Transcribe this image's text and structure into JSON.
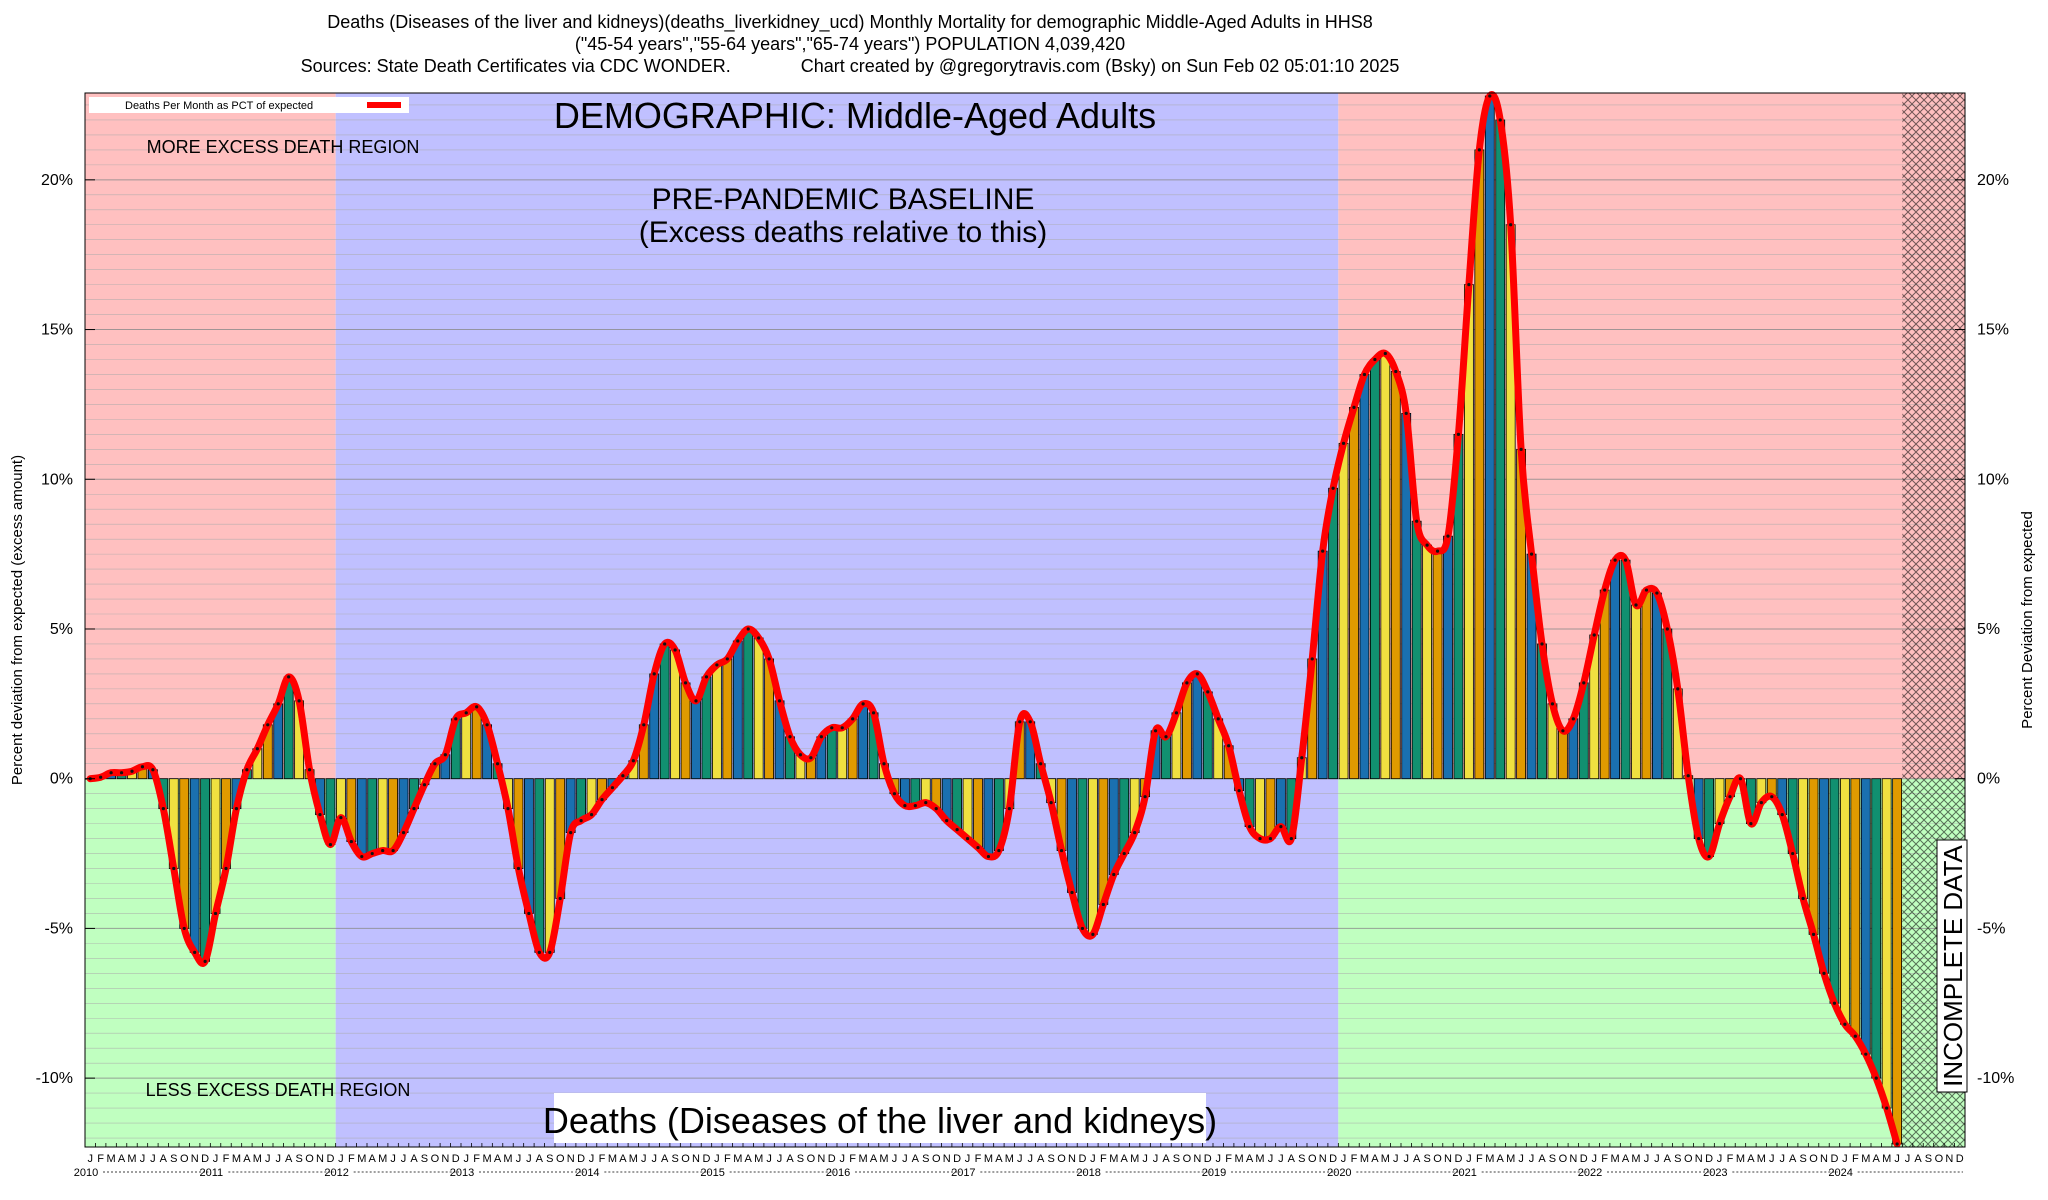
{
  "header": {
    "line1": "Deaths (Diseases of the liver and kidneys)(deaths_liverkidney_ucd) Monthly Mortality for demographic Middle-Aged Adults in HHS8",
    "line2": "(\"45-54 years\",\"55-64 years\",\"65-74 years\") POPULATION 4,039,420",
    "line3": "Sources: State Death Certificates via CDC WONDER.              Chart created by @gregorytravis.com (Bsky) on Sun Feb 02 05:01:10 2025"
  },
  "chart_data": {
    "type": "bar",
    "title": "DEMOGRAPHIC: Middle-Aged Adults",
    "subtitle": "Deaths (Diseases of the liver and kidneys)",
    "ylabel": "Percent deviation from expected (excess amount)",
    "ylabel_right": "Percent Deviation from expected",
    "ylim": [
      -12.3,
      22.9
    ],
    "yticks": [
      -10,
      -5,
      0,
      5,
      10,
      15,
      20
    ],
    "ytick_labels": [
      "-10%",
      "-5%",
      "0%",
      "5%",
      "10%",
      "15%",
      "20%"
    ],
    "grid": true,
    "legend": {
      "label": "Deaths Per Month as PCT of expected",
      "position": "top-left"
    },
    "annotations": {
      "more_excess": "MORE EXCESS DEATH REGION",
      "less_excess": "LESS EXCESS DEATH REGION",
      "baseline_line1": "PRE-PANDEMIC BASELINE",
      "baseline_line2": "(Excess deaths relative to this)",
      "incomplete": "INCOMPLETE DATA"
    },
    "baseline_period": [
      "2012-01",
      "2019-12"
    ],
    "incomplete_period": [
      "2024-07",
      "2024-12"
    ],
    "month_letters": [
      "J",
      "F",
      "M",
      "A",
      "M",
      "J",
      "J",
      "A",
      "S",
      "O",
      "N",
      "D"
    ],
    "years": [
      "2010",
      "2011",
      "2012",
      "2013",
      "2014",
      "2015",
      "2016",
      "2017",
      "2018",
      "2019",
      "2020",
      "2021",
      "2022",
      "2023",
      "2024"
    ],
    "x_start": "2010-01",
    "colors": {
      "more_region": "#ffc0c0",
      "less_region": "#c0ffc0",
      "baseline_region": "#c0c0ff",
      "line": "#ff0000",
      "bars": [
        "#f0e040",
        "#e09a00",
        "#1a70b0",
        "#119070"
      ]
    },
    "values": [
      0.0,
      0.05,
      0.2,
      0.2,
      0.25,
      0.4,
      0.3,
      -1.0,
      -3.0,
      -5.0,
      -5.8,
      -6.1,
      -4.5,
      -3.0,
      -1.0,
      0.3,
      1.0,
      1.8,
      2.5,
      3.4,
      2.6,
      0.3,
      -1.2,
      -2.2,
      -1.3,
      -2.1,
      -2.6,
      -2.5,
      -2.4,
      -2.4,
      -1.8,
      -1.0,
      -0.2,
      0.5,
      0.8,
      2.0,
      2.2,
      2.4,
      1.8,
      0.5,
      -1.0,
      -3.0,
      -4.5,
      -5.8,
      -5.8,
      -4.0,
      -1.8,
      -1.4,
      -1.2,
      -0.7,
      -0.3,
      0.1,
      0.6,
      1.8,
      3.5,
      4.5,
      4.3,
      3.2,
      2.6,
      3.4,
      3.8,
      4.0,
      4.6,
      5.0,
      4.7,
      4.0,
      2.6,
      1.4,
      0.8,
      0.7,
      1.4,
      1.7,
      1.7,
      2.0,
      2.5,
      2.2,
      0.5,
      -0.5,
      -0.9,
      -0.9,
      -0.8,
      -1.0,
      -1.4,
      -1.7,
      -2.0,
      -2.3,
      -2.6,
      -2.4,
      -1.0,
      1.9,
      1.9,
      0.5,
      -0.8,
      -2.4,
      -3.8,
      -5.0,
      -5.2,
      -4.2,
      -3.2,
      -2.5,
      -1.8,
      -0.6,
      1.6,
      1.4,
      2.2,
      3.2,
      3.5,
      2.9,
      2.0,
      1.1,
      -0.4,
      -1.6,
      -2.0,
      -2.0,
      -1.6,
      -2.0,
      0.7,
      4.0,
      7.6,
      9.7,
      11.2,
      12.4,
      13.5,
      14.0,
      14.2,
      13.6,
      12.2,
      8.6,
      7.8,
      7.6,
      8.1,
      11.5,
      16.5,
      21.0,
      22.8,
      22.0,
      18.5,
      11.0,
      7.5,
      4.5,
      2.5,
      1.6,
      2.0,
      3.2,
      4.8,
      6.3,
      7.3,
      7.3,
      5.8,
      6.3,
      6.2,
      5.0,
      3.0,
      0.1,
      -2.0,
      -2.6,
      -1.5,
      -0.6,
      0.0,
      -1.5,
      -0.8,
      -0.6,
      -1.2,
      -2.5,
      -4.0,
      -5.2,
      -6.5,
      -7.5,
      -8.2,
      -8.6,
      -9.2,
      -10.0,
      -11.0,
      -12.2
    ]
  }
}
